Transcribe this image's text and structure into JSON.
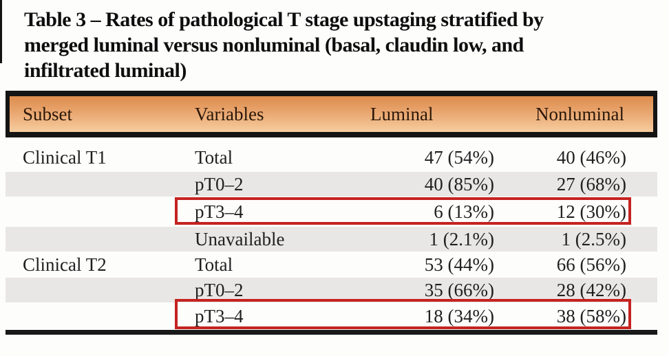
{
  "title": {
    "line1": "Table 3 – Rates of pathological T stage upstaging stratified by",
    "line2": "merged luminal versus nonluminal (basal, claudin low, and",
    "line3": "infiltrated luminal)"
  },
  "table": {
    "columns": [
      "Subset",
      "Variables",
      "Luminal",
      "Nonluminal"
    ],
    "rows": [
      {
        "subset": "Clinical T1",
        "variable": "Total",
        "luminal": "47 (54%)",
        "nonluminal": "40 (46%)",
        "shaded": false,
        "highlighted": false
      },
      {
        "subset": "",
        "variable": "pT0–2",
        "luminal": "40 (85%)",
        "nonluminal": "27 (68%)",
        "shaded": true,
        "highlighted": false
      },
      {
        "subset": "",
        "variable": "pT3–4",
        "luminal": "6 (13%)",
        "nonluminal": "12 (30%)",
        "shaded": false,
        "highlighted": true
      },
      {
        "subset": "",
        "variable": "Unavailable",
        "luminal": "1 (2.1%)",
        "nonluminal": "1 (2.5%)",
        "shaded": true,
        "highlighted": false
      },
      {
        "subset": "Clinical T2",
        "variable": "Total",
        "luminal": "53 (44%)",
        "nonluminal": "66 (56%)",
        "shaded": false,
        "highlighted": false
      },
      {
        "subset": "",
        "variable": "pT0–2",
        "luminal": "35 (66%)",
        "nonluminal": "28 (42%)",
        "shaded": true,
        "highlighted": false
      },
      {
        "subset": "",
        "variable": "pT3–4",
        "luminal": "18 (34%)",
        "nonluminal": "38 (58%)",
        "shaded": false,
        "highlighted": true
      }
    ]
  },
  "colors": {
    "header_gradient_top": "#dd8c4c",
    "header_gradient_bottom": "#f6cd9f",
    "row_shade": "#e9e7e5",
    "highlight_border": "#c42320",
    "rule_black": "#141414",
    "text": "#1c1c1c"
  }
}
